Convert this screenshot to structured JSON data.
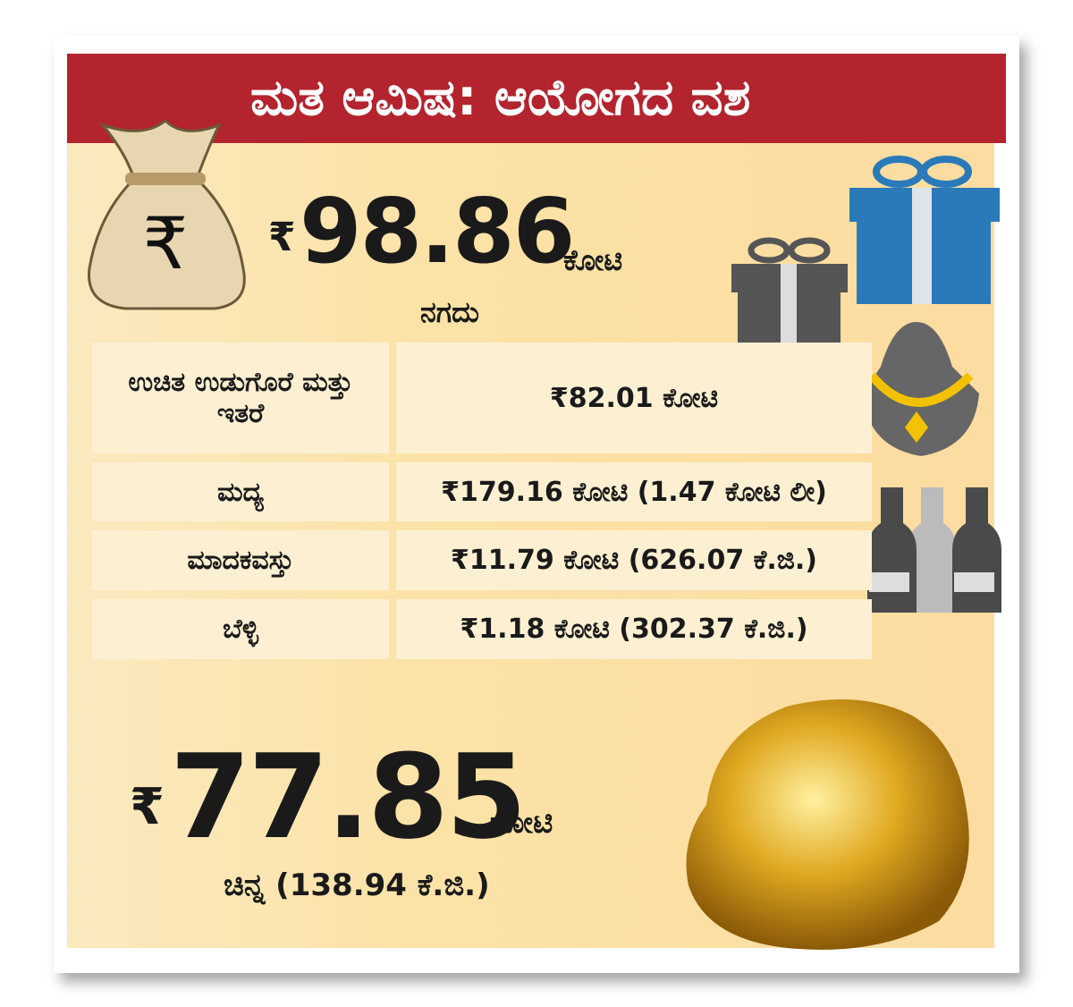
{
  "header": {
    "title": "ಮತ ಆಮಿಷ: ಆಯೋಗದ ವಶ"
  },
  "cash": {
    "currency": "₹",
    "amount": "98.86",
    "unit": "ಕೋಟಿ",
    "label": "ನಗದು"
  },
  "table": {
    "rows": [
      [
        "ಉಚಿತ ಉಡುಗೊರೆ ಮತ್ತು ಇತರೆ",
        "₹82.01 ಕೋಟಿ"
      ],
      [
        "ಮದ್ಯ",
        "₹179.16 ಕೋಟಿ (1.47 ಕೋಟಿ ಲೀ)"
      ],
      [
        "ಮಾದಕವಸ್ತು",
        "₹11.79 ಕೋಟಿ (626.07 ಕೆ.ಜಿ.)"
      ],
      [
        "ಬೆಳ್ಳಿ",
        "₹1.18 ಕೋಟಿ (302.37 ಕೆ.ಜಿ.)"
      ]
    ]
  },
  "gold": {
    "currency": "₹",
    "amount": "77.85",
    "unit": "ಕೋಟಿ",
    "label": "ಚಿನ್ನ (138.94 ಕೆ.ಜಿ.)"
  }
}
